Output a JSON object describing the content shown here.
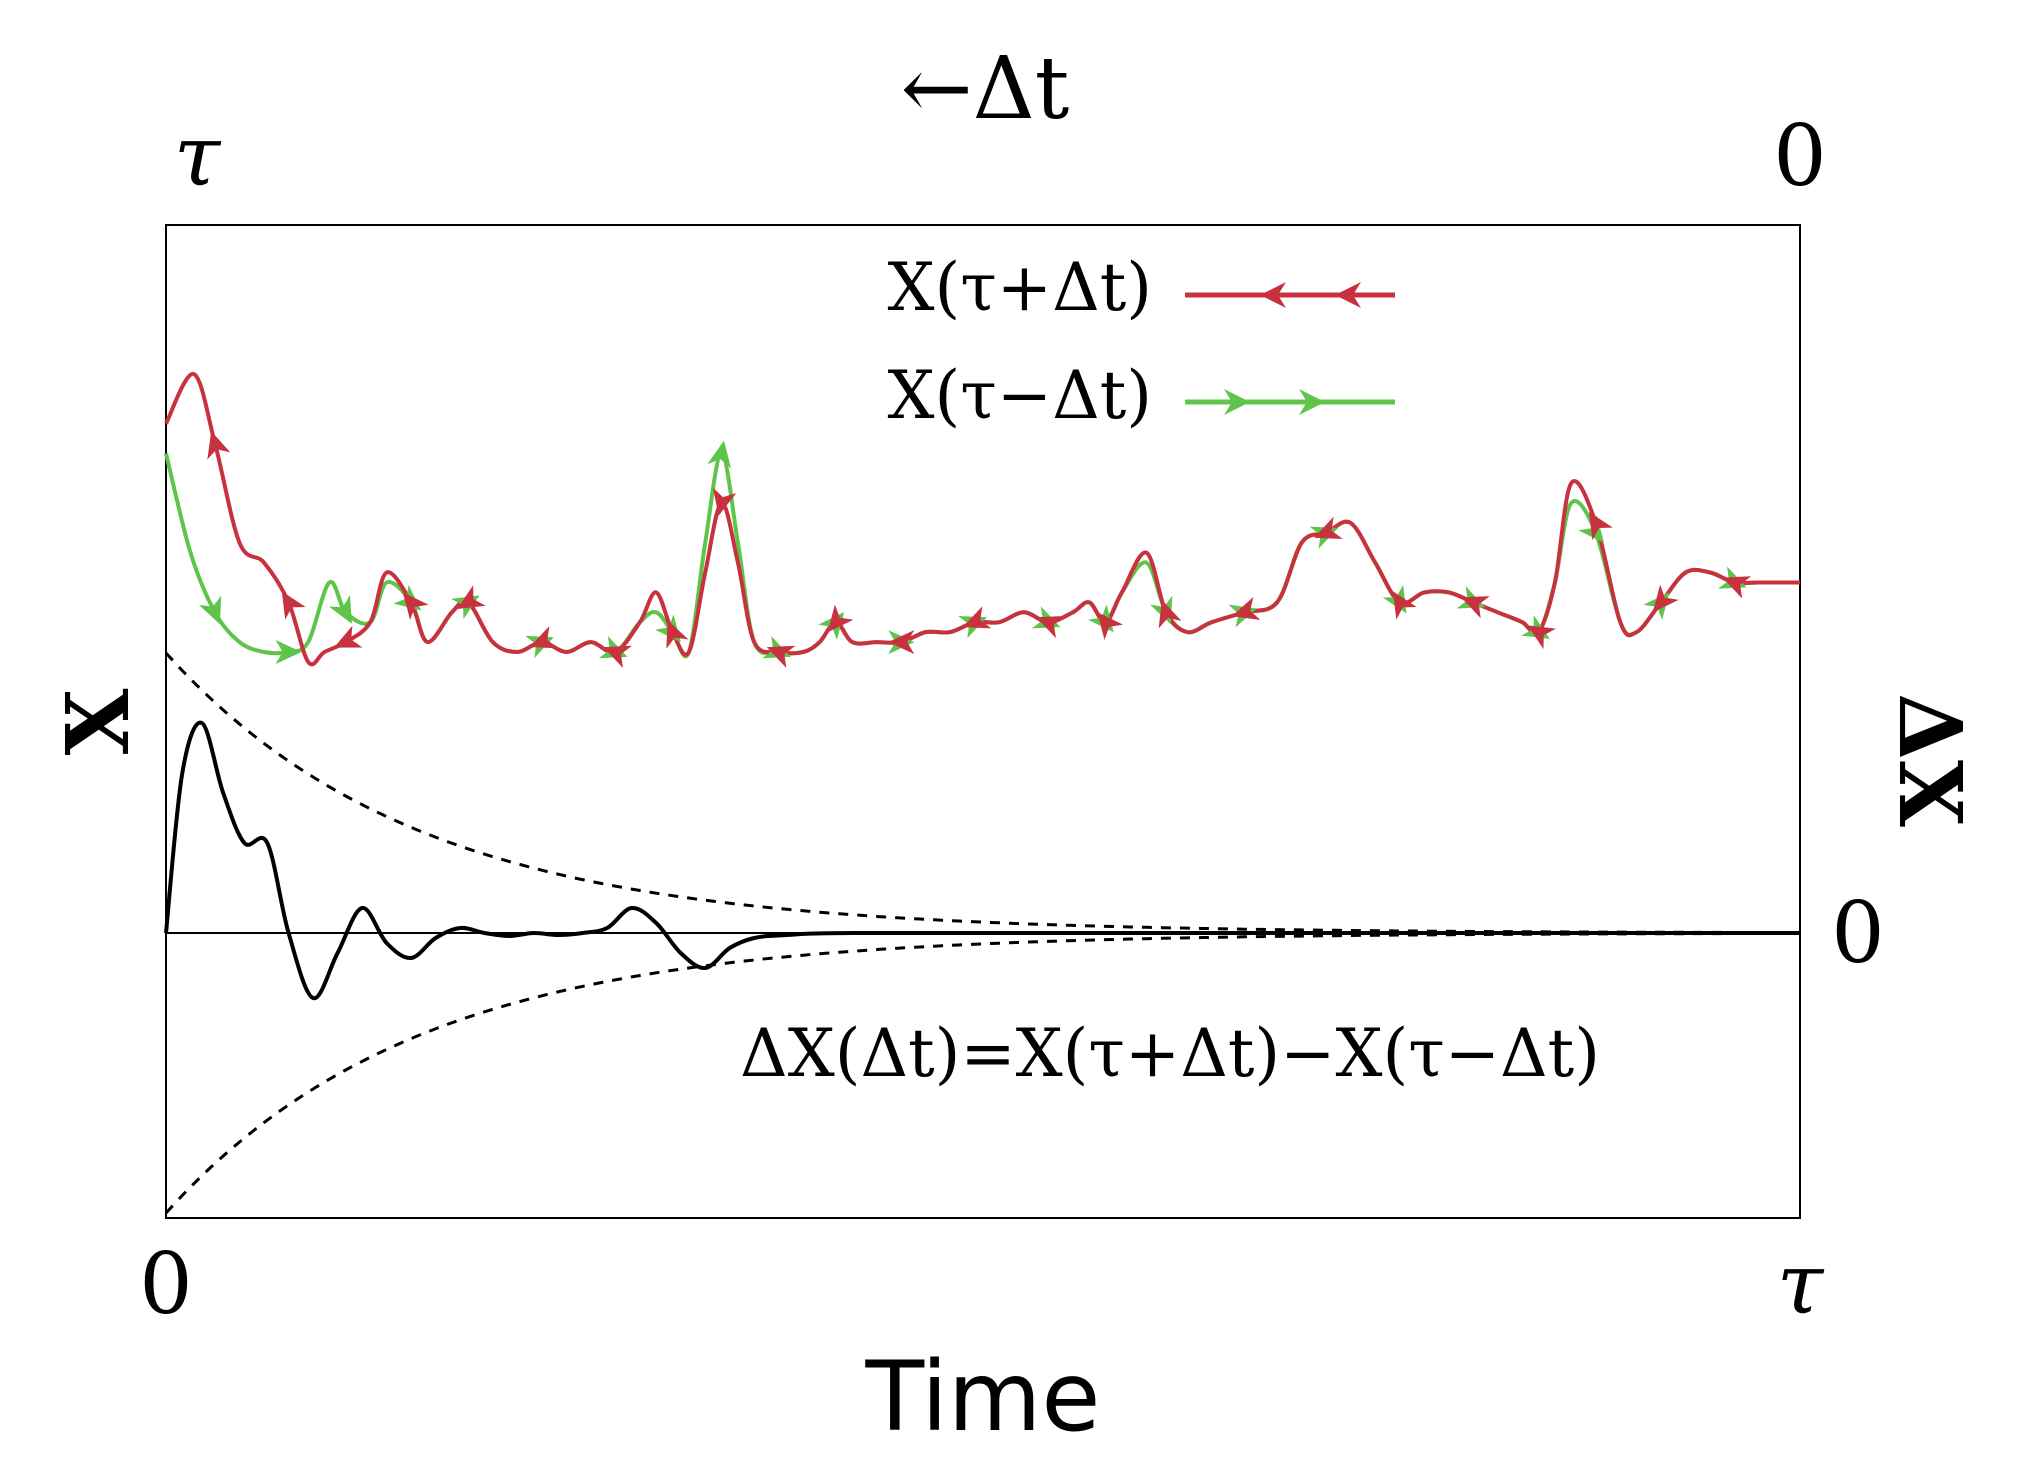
{
  "chart_data": {
    "type": "line",
    "xlabel": "Time",
    "x_ticks": [
      "0",
      "τ"
    ],
    "top_axis": {
      "label": "←Δt",
      "ticks": [
        "τ",
        "0"
      ]
    },
    "ylabel_left": "X",
    "ylabel_right": "ΔX",
    "right_ticks": [
      "0"
    ],
    "xlim": [
      0,
      1
    ],
    "legend": {
      "placement": "top-center",
      "entries": [
        {
          "text": "X(τ+Δt)",
          "color": "#c8323f"
        },
        {
          "text": "X(τ−Δt)",
          "color": "#5ec44a"
        }
      ]
    },
    "annotation": "ΔX(Δt)=X(τ+Δt)−X(τ−Δt)",
    "series": [
      {
        "name": "X(τ+Δt)",
        "color": "#c8323f",
        "points": [
          [
            0,
            0.8
          ],
          [
            0.017,
            0.85
          ],
          [
            0.03,
            0.78
          ],
          [
            0.045,
            0.68
          ],
          [
            0.06,
            0.66
          ],
          [
            0.075,
            0.62
          ],
          [
            0.087,
            0.56
          ],
          [
            0.097,
            0.57
          ],
          [
            0.11,
            0.58
          ],
          [
            0.125,
            0.6
          ],
          [
            0.135,
            0.65
          ],
          [
            0.15,
            0.62
          ],
          [
            0.16,
            0.58
          ],
          [
            0.175,
            0.61
          ],
          [
            0.185,
            0.62
          ],
          [
            0.2,
            0.58
          ],
          [
            0.215,
            0.57
          ],
          [
            0.23,
            0.58
          ],
          [
            0.245,
            0.57
          ],
          [
            0.26,
            0.58
          ],
          [
            0.275,
            0.57
          ],
          [
            0.29,
            0.6
          ],
          [
            0.3,
            0.63
          ],
          [
            0.31,
            0.59
          ],
          [
            0.32,
            0.57
          ],
          [
            0.33,
            0.65
          ],
          [
            0.34,
            0.72
          ],
          [
            0.35,
            0.66
          ],
          [
            0.36,
            0.58
          ],
          [
            0.375,
            0.57
          ],
          [
            0.39,
            0.57
          ],
          [
            0.4,
            0.58
          ],
          [
            0.41,
            0.6
          ],
          [
            0.42,
            0.58
          ],
          [
            0.435,
            0.58
          ],
          [
            0.45,
            0.58
          ],
          [
            0.465,
            0.59
          ],
          [
            0.48,
            0.59
          ],
          [
            0.495,
            0.6
          ],
          [
            0.51,
            0.6
          ],
          [
            0.525,
            0.61
          ],
          [
            0.54,
            0.6
          ],
          [
            0.555,
            0.61
          ],
          [
            0.565,
            0.62
          ],
          [
            0.575,
            0.6
          ],
          [
            0.585,
            0.63
          ],
          [
            0.6,
            0.67
          ],
          [
            0.612,
            0.61
          ],
          [
            0.625,
            0.59
          ],
          [
            0.64,
            0.6
          ],
          [
            0.66,
            0.61
          ],
          [
            0.68,
            0.62
          ],
          [
            0.695,
            0.68
          ],
          [
            0.71,
            0.69
          ],
          [
            0.725,
            0.7
          ],
          [
            0.74,
            0.66
          ],
          [
            0.755,
            0.62
          ],
          [
            0.77,
            0.63
          ],
          [
            0.785,
            0.63
          ],
          [
            0.8,
            0.62
          ],
          [
            0.815,
            0.61
          ],
          [
            0.83,
            0.6
          ],
          [
            0.84,
            0.59
          ],
          [
            0.85,
            0.64
          ],
          [
            0.86,
            0.74
          ],
          [
            0.875,
            0.7
          ],
          [
            0.89,
            0.6
          ],
          [
            0.9,
            0.59
          ],
          [
            0.915,
            0.62
          ],
          [
            0.93,
            0.65
          ],
          [
            0.945,
            0.65
          ],
          [
            0.96,
            0.64
          ],
          [
            0.975,
            0.64
          ],
          [
            1.0,
            0.64
          ]
        ]
      },
      {
        "name": "X(τ−Δt)",
        "color": "#5ec44a",
        "points": [
          [
            0,
            0.77
          ],
          [
            0.015,
            0.67
          ],
          [
            0.03,
            0.61
          ],
          [
            0.045,
            0.58
          ],
          [
            0.06,
            0.57
          ],
          [
            0.075,
            0.57
          ],
          [
            0.087,
            0.58
          ],
          [
            0.1,
            0.64
          ],
          [
            0.11,
            0.61
          ],
          [
            0.125,
            0.6
          ],
          [
            0.135,
            0.64
          ],
          [
            0.15,
            0.62
          ],
          [
            0.16,
            0.58
          ],
          [
            0.175,
            0.61
          ],
          [
            0.185,
            0.62
          ],
          [
            0.2,
            0.58
          ],
          [
            0.215,
            0.57
          ],
          [
            0.23,
            0.58
          ],
          [
            0.245,
            0.57
          ],
          [
            0.26,
            0.58
          ],
          [
            0.275,
            0.57
          ],
          [
            0.29,
            0.6
          ],
          [
            0.3,
            0.61
          ],
          [
            0.31,
            0.59
          ],
          [
            0.32,
            0.57
          ],
          [
            0.33,
            0.68
          ],
          [
            0.34,
            0.77
          ],
          [
            0.35,
            0.68
          ],
          [
            0.36,
            0.58
          ],
          [
            0.375,
            0.57
          ],
          [
            0.39,
            0.57
          ],
          [
            0.4,
            0.58
          ],
          [
            0.41,
            0.6
          ],
          [
            0.42,
            0.58
          ],
          [
            0.435,
            0.58
          ],
          [
            0.45,
            0.58
          ],
          [
            0.465,
            0.59
          ],
          [
            0.48,
            0.59
          ],
          [
            0.495,
            0.6
          ],
          [
            0.51,
            0.6
          ],
          [
            0.525,
            0.61
          ],
          [
            0.54,
            0.6
          ],
          [
            0.555,
            0.61
          ],
          [
            0.565,
            0.62
          ],
          [
            0.575,
            0.6
          ],
          [
            0.585,
            0.63
          ],
          [
            0.6,
            0.66
          ],
          [
            0.612,
            0.61
          ],
          [
            0.625,
            0.59
          ],
          [
            0.64,
            0.6
          ],
          [
            0.66,
            0.61
          ],
          [
            0.68,
            0.62
          ],
          [
            0.695,
            0.68
          ],
          [
            0.71,
            0.69
          ],
          [
            0.725,
            0.7
          ],
          [
            0.74,
            0.66
          ],
          [
            0.755,
            0.62
          ],
          [
            0.77,
            0.63
          ],
          [
            0.785,
            0.63
          ],
          [
            0.8,
            0.62
          ],
          [
            0.815,
            0.61
          ],
          [
            0.83,
            0.6
          ],
          [
            0.84,
            0.59
          ],
          [
            0.85,
            0.64
          ],
          [
            0.86,
            0.72
          ],
          [
            0.875,
            0.69
          ],
          [
            0.89,
            0.6
          ],
          [
            0.9,
            0.59
          ],
          [
            0.915,
            0.62
          ],
          [
            0.93,
            0.65
          ],
          [
            0.945,
            0.65
          ],
          [
            0.96,
            0.64
          ],
          [
            0.975,
            0.64
          ],
          [
            1.0,
            0.64
          ]
        ]
      },
      {
        "name": "ΔX(Δt)",
        "color": "#000000",
        "points": [
          [
            0,
            0.0
          ],
          [
            0.01,
            0.16
          ],
          [
            0.022,
            0.21
          ],
          [
            0.035,
            0.14
          ],
          [
            0.048,
            0.09
          ],
          [
            0.062,
            0.09
          ],
          [
            0.075,
            0.0
          ],
          [
            0.09,
            -0.065
          ],
          [
            0.105,
            -0.02
          ],
          [
            0.12,
            0.025
          ],
          [
            0.135,
            -0.01
          ],
          [
            0.15,
            -0.025
          ],
          [
            0.165,
            -0.005
          ],
          [
            0.18,
            0.005
          ],
          [
            0.195,
            0.0
          ],
          [
            0.21,
            -0.003
          ],
          [
            0.225,
            0.0
          ],
          [
            0.24,
            -0.002
          ],
          [
            0.255,
            0.0
          ],
          [
            0.27,
            0.005
          ],
          [
            0.285,
            0.025
          ],
          [
            0.3,
            0.01
          ],
          [
            0.315,
            -0.02
          ],
          [
            0.33,
            -0.035
          ],
          [
            0.345,
            -0.015
          ],
          [
            0.36,
            -0.005
          ],
          [
            0.38,
            -0.002
          ],
          [
            0.42,
            0.0
          ],
          [
            0.6,
            0.0
          ],
          [
            1.0,
            0.0
          ]
        ]
      }
    ],
    "envelope": {
      "style": "dashed",
      "color": "#000000",
      "start": 0.28,
      "decay": 6.5
    }
  }
}
